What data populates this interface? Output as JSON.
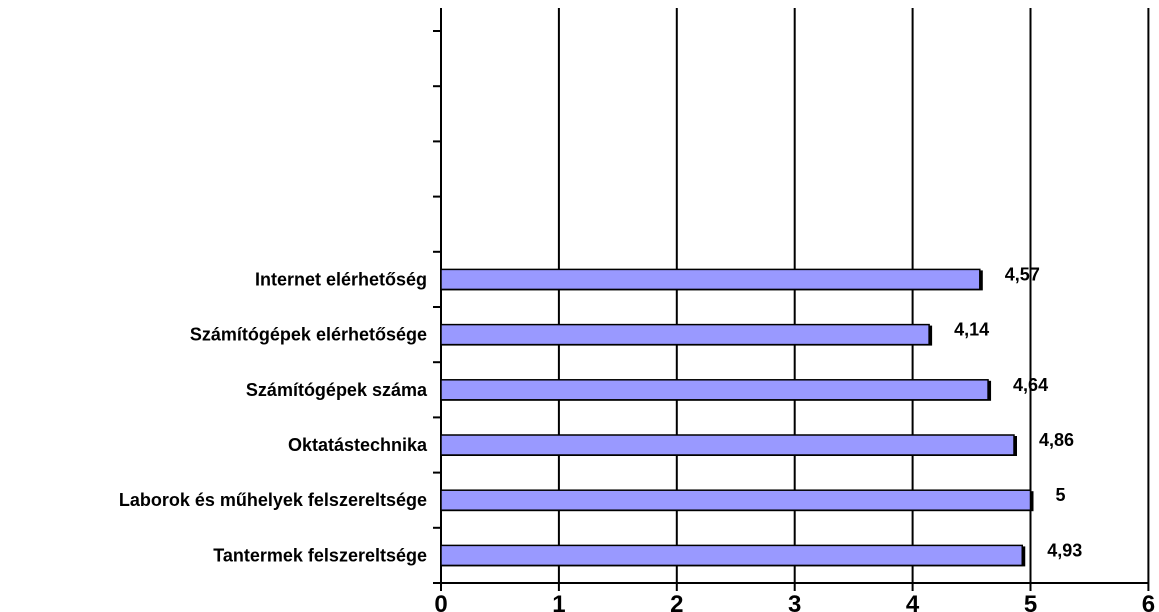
{
  "chart_data": {
    "type": "bar",
    "orientation": "horizontal",
    "categories": [
      "Internet elérhetőség",
      "Számítógépek elérhetősége",
      "Számítógépek száma",
      "Oktatástechnika",
      "Laborok és műhelyek felszereltsége",
      "Tantermek felszereltsége"
    ],
    "values": [
      4.57,
      4.14,
      4.64,
      4.86,
      5,
      4.93
    ],
    "value_labels": [
      "4,57",
      "4,14",
      "4,64",
      "4,86",
      "5",
      "4,93"
    ],
    "x_ticks": [
      "0",
      "1",
      "2",
      "3",
      "4",
      "5",
      "6"
    ],
    "xlim": [
      0,
      6
    ],
    "empty_category_slots_above": 4,
    "grid": "vertical",
    "legend": "none",
    "title": "",
    "xlabel": "",
    "ylabel": "",
    "colors": {
      "bar_fill": "#9999ff",
      "bar_stroke": "#000000",
      "grid": "#000000",
      "background": "#ffffff"
    }
  }
}
